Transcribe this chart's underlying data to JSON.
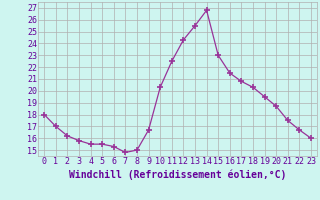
{
  "x": [
    0,
    1,
    2,
    3,
    4,
    5,
    6,
    7,
    8,
    9,
    10,
    11,
    12,
    13,
    14,
    15,
    16,
    17,
    18,
    19,
    20,
    21,
    22,
    23
  ],
  "y": [
    18,
    17,
    16.2,
    15.8,
    15.5,
    15.5,
    15.3,
    14.8,
    15.0,
    16.7,
    20.3,
    22.5,
    24.3,
    25.5,
    26.8,
    23.0,
    21.5,
    20.8,
    20.3,
    19.5,
    18.7,
    17.5,
    16.7,
    16.0
  ],
  "line_color": "#993399",
  "marker": "+",
  "marker_size": 4,
  "marker_lw": 1.2,
  "bg_color": "#cef5f0",
  "grid_color": "#b0b0b0",
  "xlabel": "Windchill (Refroidissement éolien,°C)",
  "xlabel_color": "#660099",
  "xlabel_fontsize": 7,
  "tick_color": "#660099",
  "tick_fontsize": 6,
  "ylim": [
    14.5,
    27.5
  ],
  "yticks": [
    15,
    16,
    17,
    18,
    19,
    20,
    21,
    22,
    23,
    24,
    25,
    26,
    27
  ],
  "xlim": [
    -0.5,
    23.5
  ],
  "xticks": [
    0,
    1,
    2,
    3,
    4,
    5,
    6,
    7,
    8,
    9,
    10,
    11,
    12,
    13,
    14,
    15,
    16,
    17,
    18,
    19,
    20,
    21,
    22,
    23
  ]
}
